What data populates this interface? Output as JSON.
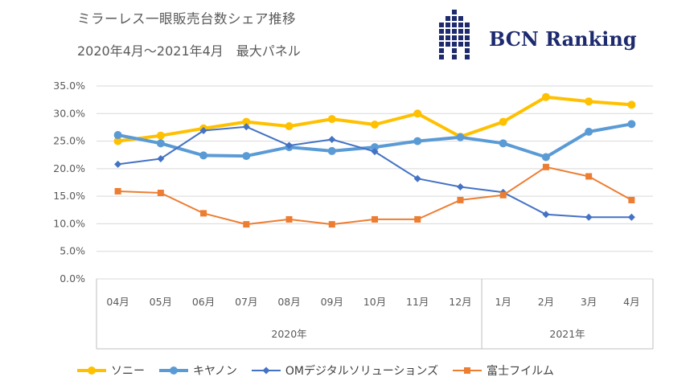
{
  "header": {
    "title": "ミラーレス一眼販売台数シェア推移",
    "subtitle": "2020年4月～2021年4月　最大パネル",
    "logo_text": "BCN Ranking"
  },
  "chart_data": {
    "type": "line",
    "title": "ミラーレス一眼販売台数シェア推移",
    "subtitle": "2020年4月～2021年4月　最大パネル",
    "categories": [
      "04月",
      "05月",
      "06月",
      "07月",
      "08月",
      "09月",
      "10月",
      "11月",
      "12月",
      "1月",
      "2月",
      "3月",
      "4月"
    ],
    "year_groups": [
      {
        "label": "2020年",
        "start": 0,
        "end": 8
      },
      {
        "label": "2021年",
        "start": 9,
        "end": 12
      }
    ],
    "ylim": [
      0,
      35
    ],
    "yticks": [
      "0.0%",
      "5.0%",
      "10.0%",
      "15.0%",
      "20.0%",
      "25.0%",
      "30.0%",
      "35.0%"
    ],
    "grid": true,
    "legend_position": "bottom",
    "series": [
      {
        "name": "ソニー",
        "color": "#FFC000",
        "marker": "circle",
        "width": 4,
        "values": [
          25.0,
          26.0,
          27.3,
          28.5,
          27.7,
          29.0,
          28.0,
          30.0,
          25.8,
          28.5,
          33.0,
          32.2,
          31.6
        ]
      },
      {
        "name": "キヤノン",
        "color": "#5B9BD5",
        "marker": "circle",
        "width": 4,
        "values": [
          26.1,
          24.6,
          22.4,
          22.3,
          23.9,
          23.2,
          23.9,
          25.0,
          25.7,
          24.6,
          22.1,
          26.7,
          28.1
        ]
      },
      {
        "name": "OMデジタルソリューションズ",
        "color": "#4472C4",
        "marker": "diamond",
        "width": 2,
        "values": [
          20.8,
          21.8,
          26.9,
          27.6,
          24.2,
          25.3,
          23.1,
          18.2,
          16.7,
          15.7,
          11.7,
          11.2,
          11.2
        ]
      },
      {
        "name": "富士フイルム",
        "color": "#ED7D31",
        "marker": "square",
        "width": 2,
        "values": [
          15.9,
          15.6,
          11.9,
          9.9,
          10.8,
          9.9,
          10.8,
          10.8,
          14.3,
          15.2,
          20.3,
          18.6,
          14.3
        ]
      }
    ]
  }
}
